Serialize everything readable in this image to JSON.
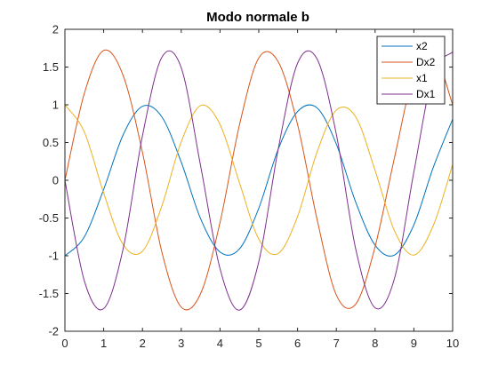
{
  "chart_data": {
    "type": "line",
    "title": "Modo normale b",
    "xlabel": "",
    "ylabel": "",
    "xlim": [
      0,
      10
    ],
    "ylim": [
      -2,
      2
    ],
    "xticks": [
      "0",
      "1",
      "2",
      "3",
      "4",
      "5",
      "6",
      "7",
      "8",
      "9",
      "10"
    ],
    "yticks": [
      "2",
      "1.5",
      "1",
      "0.5",
      "0",
      "-0.5",
      "-1",
      "-1.5",
      "-2"
    ],
    "grid": false,
    "legend_position": "top-right",
    "series": [
      {
        "name": "x2",
        "color": "#0072BD",
        "x": [
          0,
          0.5,
          1,
          1.5,
          2,
          2.5,
          3,
          3.5,
          4,
          4.5,
          5,
          5.5,
          6,
          6.5,
          7,
          7.5,
          8,
          8.5,
          9,
          9.5,
          10
        ],
        "values": [
          -1.0,
          -0.75,
          -0.12,
          0.6,
          0.98,
          0.84,
          0.24,
          -0.51,
          -0.95,
          -0.91,
          -0.37,
          0.41,
          0.91,
          0.96,
          0.48,
          -0.29,
          -0.86,
          -0.99,
          -0.59,
          0.17,
          0.81
        ]
      },
      {
        "name": "Dx2",
        "color": "#D95319",
        "x": [
          0,
          0.5,
          1,
          1.5,
          2,
          2.5,
          3,
          3.5,
          4,
          4.5,
          5,
          5.5,
          6,
          6.5,
          7,
          7.5,
          8,
          8.5,
          9,
          9.5,
          10
        ],
        "values": [
          0,
          1.15,
          1.72,
          1.39,
          0.37,
          -0.95,
          -1.68,
          -1.5,
          -0.56,
          0.73,
          1.62,
          1.57,
          0.74,
          -0.51,
          -1.52,
          -1.64,
          -0.88,
          0.3,
          1.4,
          1.7,
          1.0
        ]
      },
      {
        "name": "x1",
        "color": "#EDB120",
        "x": [
          0,
          0.5,
          1,
          1.5,
          2,
          2.5,
          3,
          3.5,
          4,
          4.5,
          5,
          5.5,
          6,
          6.5,
          7,
          7.5,
          8,
          8.5,
          9,
          9.5,
          10
        ],
        "values": [
          1.0,
          0.64,
          -0.17,
          -0.85,
          -0.94,
          -0.34,
          0.51,
          0.99,
          0.74,
          -0.03,
          -0.78,
          -0.97,
          -0.48,
          0.37,
          0.93,
          0.84,
          0.13,
          -0.67,
          -0.99,
          -0.6,
          0.21
        ]
      },
      {
        "name": "Dx1",
        "color": "#7E2F8E",
        "x": [
          0,
          0.5,
          1,
          1.5,
          2,
          2.5,
          3,
          3.5,
          4,
          4.5,
          5,
          5.5,
          6,
          6.5,
          7,
          7.5,
          8,
          8.5,
          9,
          9.5,
          10
        ],
        "values": [
          0,
          -1.33,
          -1.7,
          -0.91,
          0.59,
          1.63,
          1.49,
          0.19,
          -1.17,
          -1.72,
          -1.08,
          0.41,
          1.55,
          1.61,
          0.61,
          -0.91,
          -1.69,
          -1.3,
          0.11,
          1.41,
          1.7
        ]
      }
    ]
  }
}
